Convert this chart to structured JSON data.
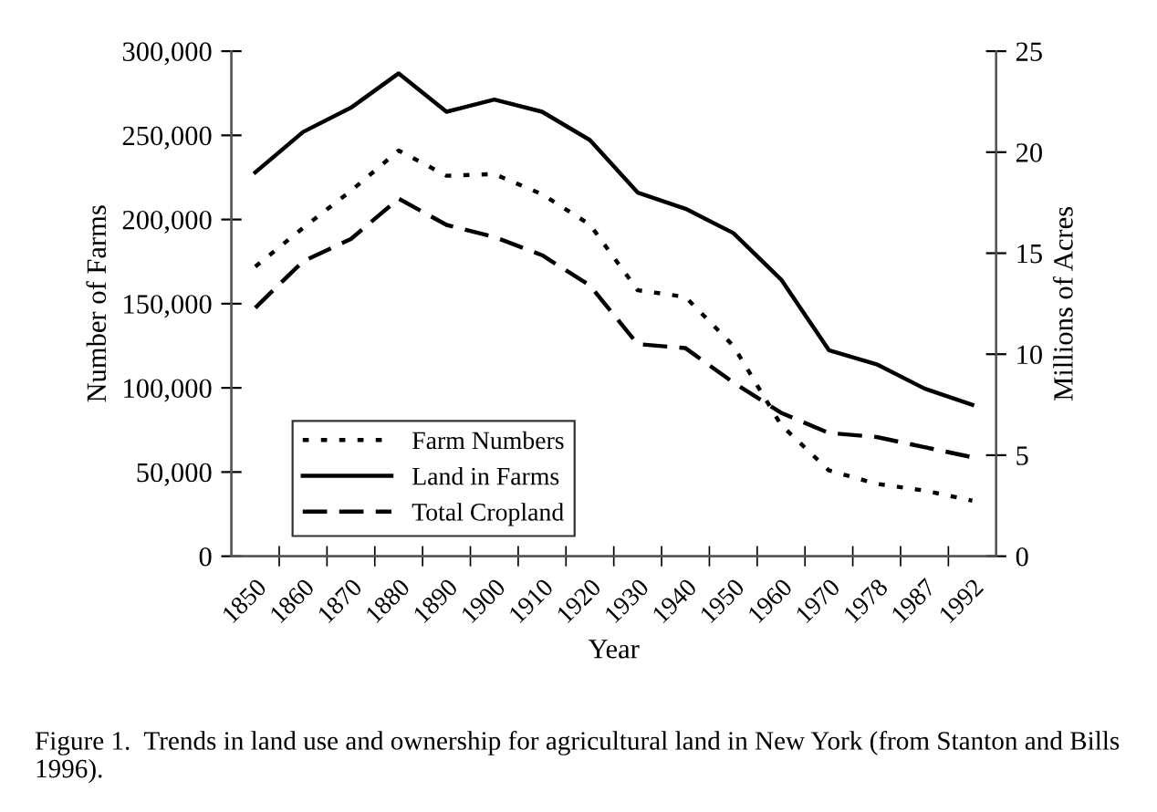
{
  "chart_data": {
    "type": "line",
    "xlabel": "Year",
    "ylabel": "Number of Farms",
    "y2label": "Millions of Acres",
    "categories": [
      "1850",
      "1860",
      "1870",
      "1880",
      "1890",
      "1900",
      "1910",
      "1920",
      "1930",
      "1940",
      "1950",
      "1960",
      "1970",
      "1978",
      "1987",
      "1992"
    ],
    "series": [
      {
        "name": "Farm Numbers",
        "color": "#000000",
        "line_style": "dotted",
        "values": [
          172000,
          195000,
          217000,
          241000,
          226000,
          227000,
          215000,
          197000,
          158000,
          154000,
          125000,
          78000,
          51000,
          43000,
          39000,
          33000
        ]
      },
      {
        "name": "Land in Farms",
        "color": "#000000",
        "line_style": "solid",
        "axis": "y2",
        "values": [
          19.0,
          21.0,
          22.2,
          23.9,
          22.0,
          22.6,
          22.0,
          20.6,
          18.0,
          17.2,
          16.0,
          13.7,
          10.2,
          9.5,
          8.3,
          7.5
        ]
      },
      {
        "name": "Total Cropland",
        "color": "#000000",
        "line_style": "dashed",
        "axis": "y2",
        "values": [
          12.3,
          14.6,
          15.7,
          17.7,
          16.4,
          15.8,
          14.9,
          13.4,
          10.5,
          10.3,
          8.6,
          7.1,
          6.1,
          5.9,
          5.4,
          4.9
        ]
      }
    ],
    "ylim": [
      0,
      300000
    ],
    "yticks": [
      {
        "value": 0,
        "label": "0"
      },
      {
        "value": 50000,
        "label": "50,000"
      },
      {
        "value": 100000,
        "label": "100,000"
      },
      {
        "value": 150000,
        "label": "150,000"
      },
      {
        "value": 200000,
        "label": "200,000"
      },
      {
        "value": 250000,
        "label": "250,000"
      },
      {
        "value": 300000,
        "label": "300,000"
      }
    ],
    "y2lim": [
      0,
      25
    ],
    "y2ticks": [
      0,
      5,
      10,
      15,
      20,
      25
    ],
    "legend": "bottom left",
    "grid": false,
    "annotations": [
      "Figure 1.  Trends in land use and ownership for agricultural land in New York (from Stanton and Bills 1996)."
    ]
  }
}
